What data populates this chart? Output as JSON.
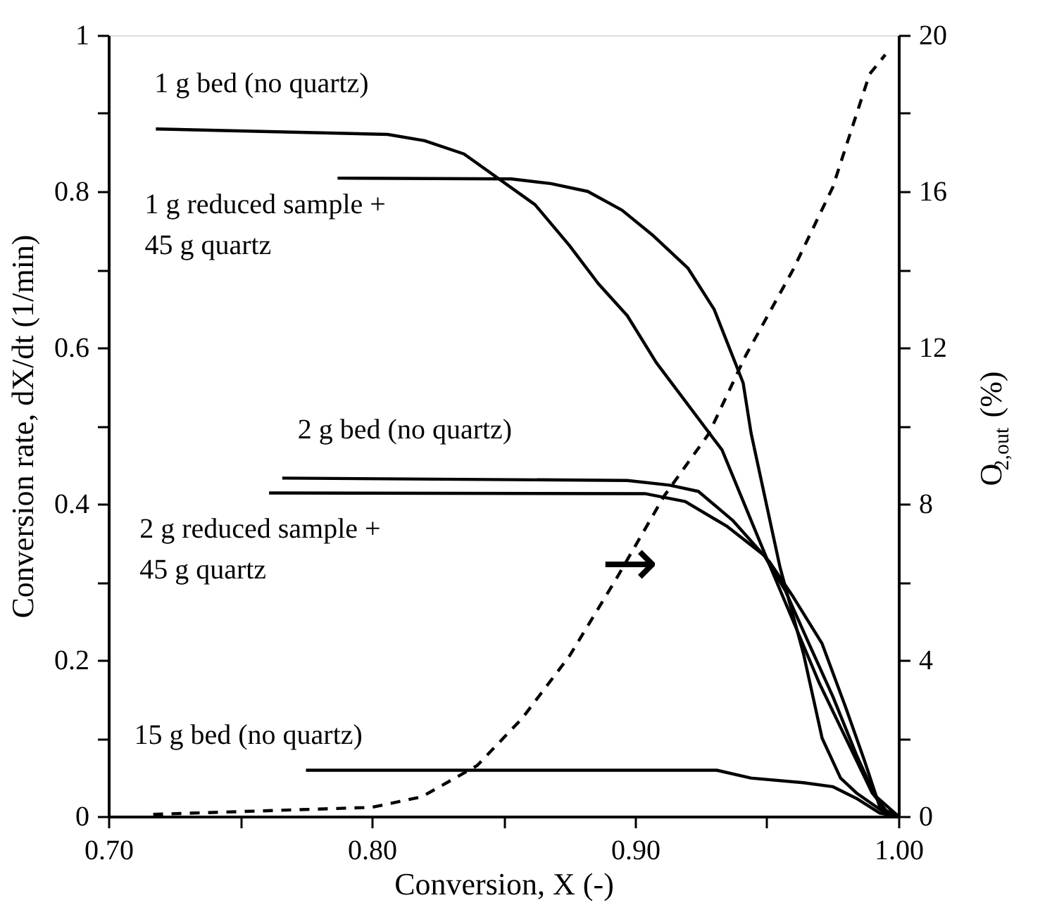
{
  "chart_data": {
    "type": "line",
    "xlabel": "Conversion, X (-)",
    "ylabel": "Conversion rate, dX/dt (1/min)",
    "y2label": "O$_{2,out}$(%)",
    "xlim": [
      0.7,
      1.0
    ],
    "xticks": [
      {
        "value": 0.7,
        "label": "0.70"
      },
      {
        "value": 0.75,
        "label": null
      },
      {
        "value": 0.8,
        "label": "0.80"
      },
      {
        "value": 0.85,
        "label": null
      },
      {
        "value": 0.9,
        "label": "0.90"
      },
      {
        "value": 0.95,
        "label": null
      },
      {
        "value": 1.0,
        "label": "1.00"
      }
    ],
    "ylim": [
      0,
      1
    ],
    "yticks": [
      0,
      {
        "value": 0.1,
        "label": null
      },
      0.2,
      {
        "value": 0.3,
        "label": null
      },
      0.4,
      {
        "value": 0.5,
        "label": null
      },
      0.6,
      {
        "value": 0.7,
        "label": null
      },
      0.8,
      {
        "value": 0.9,
        "label": null
      },
      1
    ],
    "y2lim": [
      0,
      20
    ],
    "y2ticks": [
      0,
      {
        "value": 2,
        "label": null
      },
      4,
      {
        "value": 6,
        "label": null
      },
      8,
      {
        "value": 10,
        "label": null
      },
      12,
      {
        "value": 14,
        "label": null
      },
      16,
      {
        "value": 18,
        "label": null
      },
      20
    ],
    "grid": false,
    "marker": "none",
    "series": [
      {
        "name": "1 g bed (no quartz)",
        "color": "#000000",
        "line_style": "solid",
        "x": [
          0.718,
          0.806,
          0.82,
          0.835,
          0.862,
          0.875,
          0.886,
          0.897,
          0.908,
          0.933,
          0.95,
          0.96,
          0.97,
          0.98,
          0.99,
          0.997
        ],
        "values": [
          0.88,
          0.873,
          0.865,
          0.848,
          0.783,
          0.731,
          0.682,
          0.641,
          0.581,
          0.469,
          0.33,
          0.25,
          0.17,
          0.1,
          0.03,
          0.0
        ]
      },
      {
        "name": "1 g reduced sample +\n45 g quartz",
        "color": "#000000",
        "line_style": "solid",
        "x": [
          0.787,
          0.853,
          0.868,
          0.882,
          0.895,
          0.907,
          0.92,
          0.93,
          0.941,
          0.944,
          0.955,
          0.964,
          0.971,
          0.978,
          0.984,
          0.995,
          1.0
        ],
        "values": [
          0.817,
          0.816,
          0.81,
          0.8,
          0.776,
          0.743,
          0.702,
          0.649,
          0.555,
          0.491,
          0.319,
          0.207,
          0.1,
          0.049,
          0.03,
          0.004,
          0.0
        ]
      },
      {
        "name": "2 g bed (no quartz)",
        "color": "#000000",
        "line_style": "solid",
        "x": [
          0.766,
          0.897,
          0.913,
          0.924,
          0.937,
          0.951,
          0.96,
          0.971,
          0.98,
          0.987,
          0.993,
          1.0
        ],
        "values": [
          0.433,
          0.43,
          0.424,
          0.416,
          0.379,
          0.326,
          0.281,
          0.221,
          0.139,
          0.072,
          0.011,
          0.0
        ]
      },
      {
        "name": "2 g reduced sample +\n45 g quartz",
        "color": "#000000",
        "line_style": "solid",
        "x": [
          0.761,
          0.904,
          0.919,
          0.935,
          0.949,
          0.957,
          0.966,
          0.975,
          0.984,
          0.991,
          1.0
        ],
        "values": [
          0.414,
          0.413,
          0.403,
          0.371,
          0.334,
          0.289,
          0.221,
          0.154,
          0.079,
          0.027,
          0.0
        ]
      },
      {
        "name": "15 g bed (no quartz)",
        "color": "#000000",
        "line_style": "solid",
        "x": [
          0.775,
          0.931,
          0.944,
          0.964,
          0.975,
          0.984,
          0.993,
          1.0
        ],
        "values": [
          0.059,
          0.059,
          0.049,
          0.043,
          0.038,
          0.023,
          0.004,
          0.0
        ]
      },
      {
        "color": "#000000",
        "line_style": "dashed",
        "axis": "y2",
        "x": [
          0.717,
          0.8,
          0.819,
          0.84,
          0.857,
          0.875,
          0.893,
          0.911,
          0.928,
          0.942,
          0.96,
          0.975,
          0.989,
          0.995
        ],
        "values": [
          0.05,
          0.23,
          0.5,
          1.3,
          2.5,
          4.1,
          6.1,
          8.2,
          9.8,
          11.8,
          14.0,
          16.1,
          19.0,
          19.5
        ]
      }
    ],
    "annotations": [
      {
        "text": "→",
        "x": 0.898,
        "y": 0.321
      }
    ]
  }
}
